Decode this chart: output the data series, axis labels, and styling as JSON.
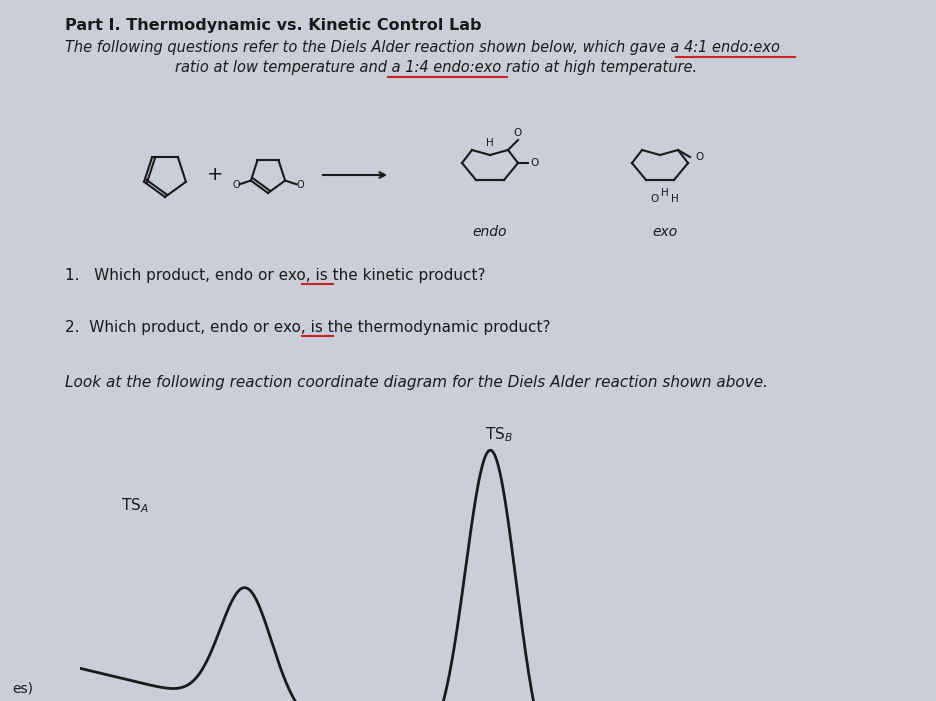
{
  "title": "Part I. Thermodynamic vs. Kinetic Control Lab",
  "subtitle1": "The following questions refer to the Diels Alder reaction shown below, which gave a 4:1 endo:exo",
  "subtitle2": "ratio at low temperature and a 1:4 endo:exo ratio at high temperature.",
  "q1": "1.   Which product, endo or exo, is the kinetic product?",
  "q2": "2.  Which product, endo or exo, is the thermodynamic product?",
  "look_text": "Look at the following reaction coordinate diagram for the Diels Alder reaction shown above.",
  "endo_label": "endo",
  "exo_label": "exo",
  "tsa_label": "TS",
  "tsb_label": "TS",
  "footer": "es)",
  "bg_color": "#caced8",
  "text_color": "#1a1a1a",
  "curve_color": "#1a1a1a",
  "underline_color": "#cc2222",
  "title_fontsize": 11.5,
  "body_fontsize": 10.5,
  "q_fontsize": 11,
  "ts_fontsize": 11
}
